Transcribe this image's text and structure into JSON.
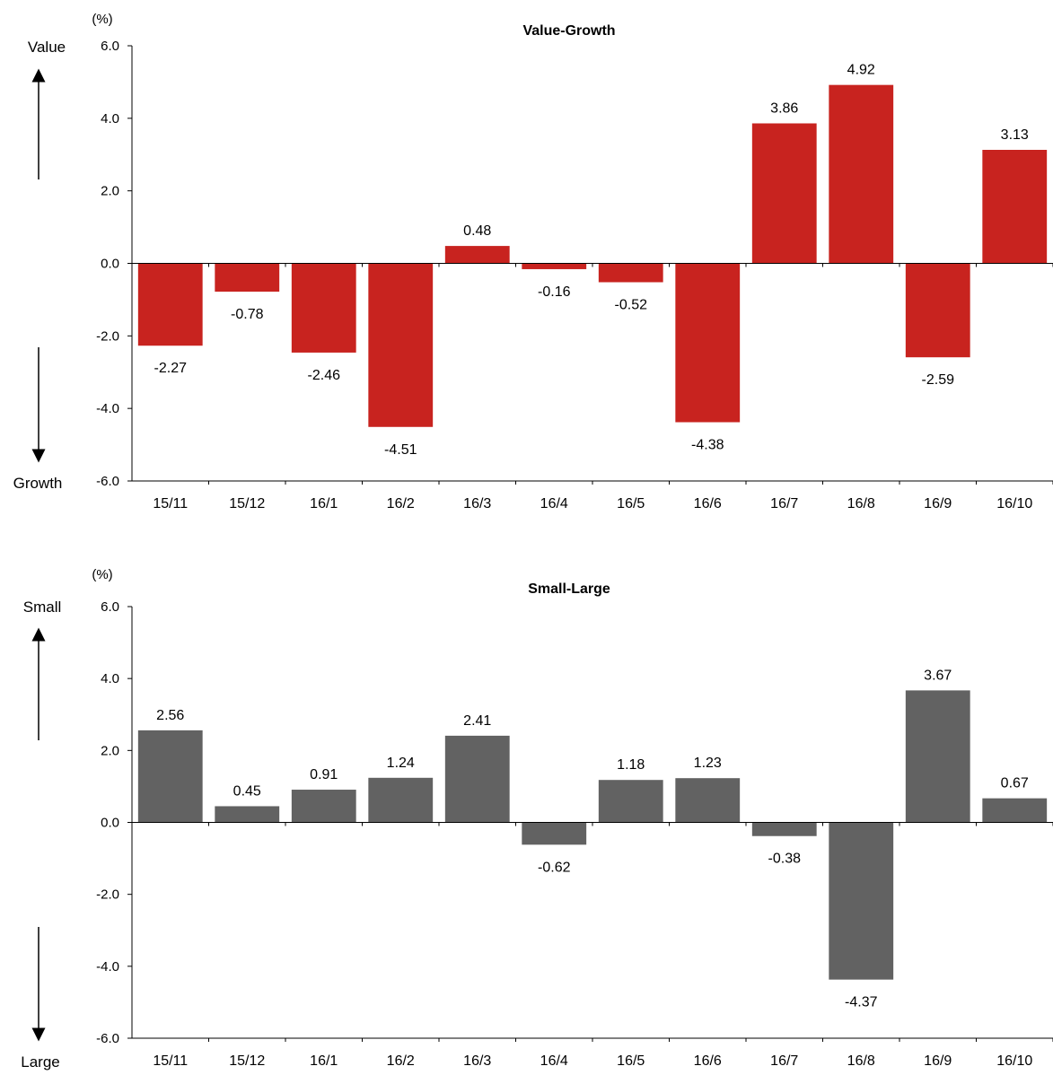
{
  "chart_data": [
    {
      "type": "bar",
      "title": "Value-Growth",
      "unit_label": "(%)",
      "top_label": "Value",
      "bottom_label": "Growth",
      "ylim": [
        -6,
        6
      ],
      "yticks": [
        "6.0",
        "4.0",
        "2.0",
        "0.0",
        "-2.0",
        "-4.0",
        "-6.0"
      ],
      "categories": [
        "15/11",
        "15/12",
        "16/1",
        "16/2",
        "16/3",
        "16/4",
        "16/5",
        "16/6",
        "16/7",
        "16/8",
        "16/9",
        "16/10"
      ],
      "values": [
        -2.27,
        -0.78,
        -2.46,
        -4.51,
        0.48,
        -0.16,
        -0.52,
        -4.38,
        3.86,
        4.92,
        -2.59,
        3.13
      ],
      "value_labels": [
        "-2.27",
        "-0.78",
        "-2.46",
        "-4.51",
        "0.48",
        "-0.16",
        "-0.52",
        "-4.38",
        "3.86",
        "4.92",
        "-2.59",
        "3.13"
      ],
      "color": "#c8231f",
      "grid": false,
      "legend": "none"
    },
    {
      "type": "bar",
      "title": "Small-Large",
      "unit_label": "(%)",
      "top_label": "Small",
      "bottom_label": "Large",
      "ylim": [
        -6,
        6
      ],
      "yticks": [
        "6.0",
        "4.0",
        "2.0",
        "0.0",
        "-2.0",
        "-4.0",
        "-6.0"
      ],
      "categories": [
        "15/11",
        "15/12",
        "16/1",
        "16/2",
        "16/3",
        "16/4",
        "16/5",
        "16/6",
        "16/7",
        "16/8",
        "16/9",
        "16/10"
      ],
      "values": [
        2.56,
        0.45,
        0.91,
        1.24,
        2.41,
        -0.62,
        1.18,
        1.23,
        -0.38,
        -4.37,
        3.67,
        0.67
      ],
      "value_labels": [
        "2.56",
        "0.45",
        "0.91",
        "1.24",
        "2.41",
        "-0.62",
        "1.18",
        "1.23",
        "-0.38",
        "-4.37",
        "3.67",
        "0.67"
      ],
      "color": "#626262",
      "grid": false,
      "legend": "none"
    }
  ]
}
